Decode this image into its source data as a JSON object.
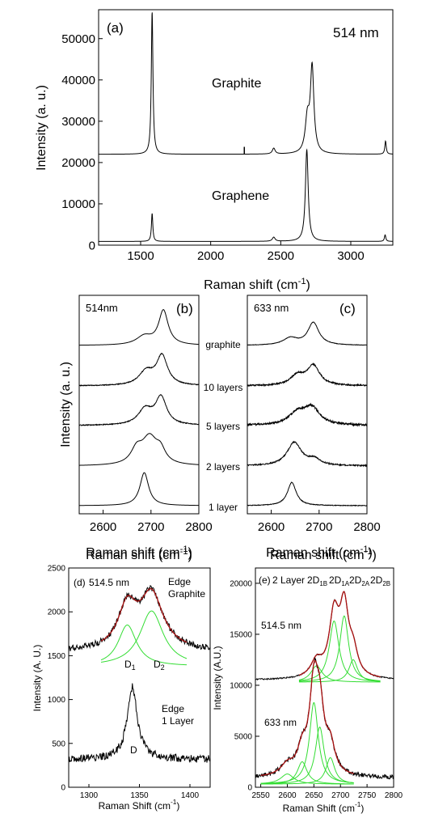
{
  "chart_data": [
    {
      "id": "a",
      "type": "line",
      "panel_label": "(a)",
      "annotation": "514 nm",
      "xlabel": "Raman shift (cm⁻¹)",
      "ylabel": "Intensity (a. u.)",
      "xlim": [
        1200,
        3300
      ],
      "ylim": [
        0,
        57000
      ],
      "xticks": [
        1500,
        2000,
        2500,
        3000
      ],
      "yticks": [
        0,
        10000,
        20000,
        30000,
        40000,
        50000
      ],
      "grid": false,
      "series": [
        {
          "name": "Graphite",
          "baseline": 22000,
          "peaks": [
            {
              "center": 1582,
              "height": 34500,
              "width": 7
            },
            {
              "center": 2450,
              "height": 1400,
              "width": 12
            },
            {
              "center": 2690,
              "height": 8000,
              "width": 18
            },
            {
              "center": 2724,
              "height": 20500,
              "width": 15
            },
            {
              "center": 3248,
              "height": 3200,
              "width": 6
            }
          ],
          "spikes": [
            {
              "center": 2240,
              "height": 1800
            }
          ]
        },
        {
          "name": "Graphene",
          "baseline": 900,
          "peaks": [
            {
              "center": 1582,
              "height": 6800,
              "width": 6
            },
            {
              "center": 2450,
              "height": 1000,
              "width": 12
            },
            {
              "center": 2686,
              "height": 22200,
              "width": 12
            },
            {
              "center": 3245,
              "height": 1600,
              "width": 6
            }
          ],
          "spikes": []
        }
      ]
    },
    {
      "id": "b",
      "type": "line",
      "panel_label": "(b)",
      "annotation": "514nm",
      "xlabel": "Raman shift (cm⁻¹)",
      "ylabel": "Intensity (a. u.)",
      "xlim": [
        2550,
        2800
      ],
      "xticks": [
        2600,
        2700,
        2800
      ],
      "grid": false,
      "series": [
        {
          "name": "graphite",
          "offset": 4,
          "peaks": [
            {
              "center": 2686,
              "height": 0.22,
              "width": 20
            },
            {
              "center": 2726,
              "height": 0.88,
              "width": 12
            }
          ],
          "noise": 0.0
        },
        {
          "name": "10 layers",
          "offset": 3,
          "peaks": [
            {
              "center": 2690,
              "height": 0.35,
              "width": 18
            },
            {
              "center": 2723,
              "height": 0.75,
              "width": 14
            }
          ],
          "noise": 0.02
        },
        {
          "name": "5 layers",
          "offset": 2,
          "peaks": [
            {
              "center": 2688,
              "height": 0.4,
              "width": 18
            },
            {
              "center": 2721,
              "height": 0.7,
              "width": 14
            }
          ],
          "noise": 0.02
        },
        {
          "name": "2 layers",
          "offset": 1,
          "peaks": [
            {
              "center": 2670,
              "height": 0.35,
              "width": 14
            },
            {
              "center": 2697,
              "height": 0.7,
              "width": 20
            },
            {
              "center": 2720,
              "height": 0.3,
              "width": 12
            }
          ],
          "noise": 0.0
        },
        {
          "name": "1 layer",
          "offset": 0,
          "peaks": [
            {
              "center": 2686,
              "height": 0.85,
              "width": 11
            }
          ],
          "noise": 0.0
        }
      ]
    },
    {
      "id": "c",
      "type": "line",
      "panel_label": "(c)",
      "annotation": "633 nm",
      "xlabel": "Raman shift (cm⁻¹)",
      "xlim": [
        2550,
        2800
      ],
      "xticks": [
        2600,
        2700,
        2800
      ],
      "grid": false,
      "series": [
        {
          "name": "graphite",
          "offset": 4,
          "peaks": [
            {
              "center": 2640,
              "height": 0.18,
              "width": 18
            },
            {
              "center": 2688,
              "height": 0.58,
              "width": 14
            }
          ],
          "noise": 0.01
        },
        {
          "name": "10 layers",
          "offset": 3,
          "peaks": [
            {
              "center": 2655,
              "height": 0.25,
              "width": 18
            },
            {
              "center": 2688,
              "height": 0.5,
              "width": 16
            }
          ],
          "noise": 0.035
        },
        {
          "name": "5 layers",
          "offset": 2,
          "peaks": [
            {
              "center": 2655,
              "height": 0.3,
              "width": 22
            },
            {
              "center": 2685,
              "height": 0.42,
              "width": 20
            }
          ],
          "noise": 0.05
        },
        {
          "name": "2 layers",
          "offset": 1,
          "peaks": [
            {
              "center": 2648,
              "height": 0.6,
              "width": 18
            },
            {
              "center": 2690,
              "height": 0.15,
              "width": 16
            }
          ],
          "noise": 0.03
        },
        {
          "name": "1 layer",
          "offset": 0,
          "peaks": [
            {
              "center": 2643,
              "height": 0.6,
              "width": 11
            }
          ],
          "noise": 0.015
        }
      ]
    },
    {
      "id": "d",
      "type": "line",
      "panel_label": "(d)",
      "annotation": "514.5 nm",
      "xlabel": "Raman Shift (cm⁻¹)",
      "ylabel": "Intensity (A. U.)",
      "top_label": "Raman shift (cm⁻¹)",
      "xlim": [
        1280,
        1420
      ],
      "ylim": [
        0,
        2500
      ],
      "xticks": [
        1300,
        1350,
        1400
      ],
      "yticks": [
        0,
        500,
        1000,
        1500,
        2000,
        2500
      ],
      "grid": false,
      "labels": {
        "edge_graphite": [
          "Edge",
          "Graphite"
        ],
        "edge_1layer": [
          "Edge",
          "1 Layer"
        ],
        "d1": "D",
        "d1_sub": "1",
        "d2": "D",
        "d2_sub": "2",
        "d": "D"
      },
      "series": [
        {
          "name": "Edge Graphite",
          "baseline": 1550,
          "fit_baseline": 1380,
          "components": [
            {
              "center": 1338,
              "height": 470,
              "width": 11
            },
            {
              "center": 1362,
              "height": 630,
              "width": 14
            }
          ],
          "noise": 35
        },
        {
          "name": "Edge 1 Layer",
          "baseline": 320,
          "components": [
            {
              "center": 1343,
              "height": 820,
              "width": 6
            }
          ],
          "noise": 45
        }
      ]
    },
    {
      "id": "e",
      "type": "line",
      "panel_label": "(e)",
      "annotation": "2 Layer",
      "xlabel": "Raman Shift (cm⁻¹)",
      "ylabel": "Intensity (A.U.)",
      "top_label": "Raman shift (cm⁻¹)",
      "xlim": [
        2540,
        2800
      ],
      "ylim": [
        0,
        21500
      ],
      "xticks": [
        2550,
        2600,
        2650,
        2700,
        2750,
        2800
      ],
      "yticks": [
        0,
        5000,
        10000,
        15000,
        20000
      ],
      "grid": false,
      "component_labels": [
        {
          "main": "2D",
          "sub": "1B"
        },
        {
          "main": "2D",
          "sub": "1A"
        },
        {
          "main": "2D",
          "sub": "2A"
        },
        {
          "main": "2D",
          "sub": "2B"
        }
      ],
      "series": [
        {
          "name": "514.5 nm",
          "baseline": 10500,
          "fit_baseline": 10300,
          "components": [
            {
              "center": 2655,
              "height": 1600,
              "width": 13
            },
            {
              "center": 2688,
              "height": 6000,
              "width": 11
            },
            {
              "center": 2707,
              "height": 6500,
              "width": 10
            },
            {
              "center": 2724,
              "height": 2200,
              "width": 10
            }
          ],
          "noise": 60
        },
        {
          "name": "633 nm",
          "baseline": 900,
          "fit_baseline": 300,
          "components": [
            {
              "center": 2600,
              "height": 1000,
              "width": 15
            },
            {
              "center": 2628,
              "height": 2200,
              "width": 11
            },
            {
              "center": 2650,
              "height": 8000,
              "width": 10
            },
            {
              "center": 2661,
              "height": 5600,
              "width": 10
            },
            {
              "center": 2681,
              "height": 2600,
              "width": 10
            }
          ],
          "noise": 220
        }
      ]
    }
  ]
}
